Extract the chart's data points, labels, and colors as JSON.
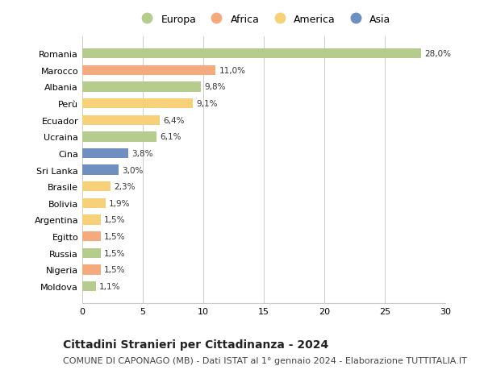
{
  "countries": [
    "Romania",
    "Marocco",
    "Albania",
    "Perù",
    "Ecuador",
    "Ucraina",
    "Cina",
    "Sri Lanka",
    "Brasile",
    "Bolivia",
    "Argentina",
    "Egitto",
    "Russia",
    "Nigeria",
    "Moldova"
  ],
  "values": [
    28.0,
    11.0,
    9.8,
    9.1,
    6.4,
    6.1,
    3.8,
    3.0,
    2.3,
    1.9,
    1.5,
    1.5,
    1.5,
    1.5,
    1.1
  ],
  "labels": [
    "28,0%",
    "11,0%",
    "9,8%",
    "9,1%",
    "6,4%",
    "6,1%",
    "3,8%",
    "3,0%",
    "2,3%",
    "1,9%",
    "1,5%",
    "1,5%",
    "1,5%",
    "1,5%",
    "1,1%"
  ],
  "continents": [
    "Europa",
    "Africa",
    "Europa",
    "America",
    "America",
    "Europa",
    "Asia",
    "Asia",
    "America",
    "America",
    "America",
    "Africa",
    "Europa",
    "Africa",
    "Europa"
  ],
  "colors": {
    "Europa": "#b5cc8e",
    "Africa": "#f4a97f",
    "America": "#f7d17a",
    "Asia": "#6e8fbf"
  },
  "legend_order": [
    "Europa",
    "Africa",
    "America",
    "Asia"
  ],
  "xlim": [
    0,
    30
  ],
  "xticks": [
    0,
    5,
    10,
    15,
    20,
    25,
    30
  ],
  "title": "Cittadini Stranieri per Cittadinanza - 2024",
  "subtitle": "COMUNE DI CAPONAGO (MB) - Dati ISTAT al 1° gennaio 2024 - Elaborazione TUTTITALIA.IT",
  "bg_color": "#ffffff",
  "grid_color": "#cccccc",
  "bar_height": 0.6,
  "title_fontsize": 10,
  "subtitle_fontsize": 8,
  "label_fontsize": 7.5,
  "tick_fontsize": 8,
  "legend_fontsize": 9
}
